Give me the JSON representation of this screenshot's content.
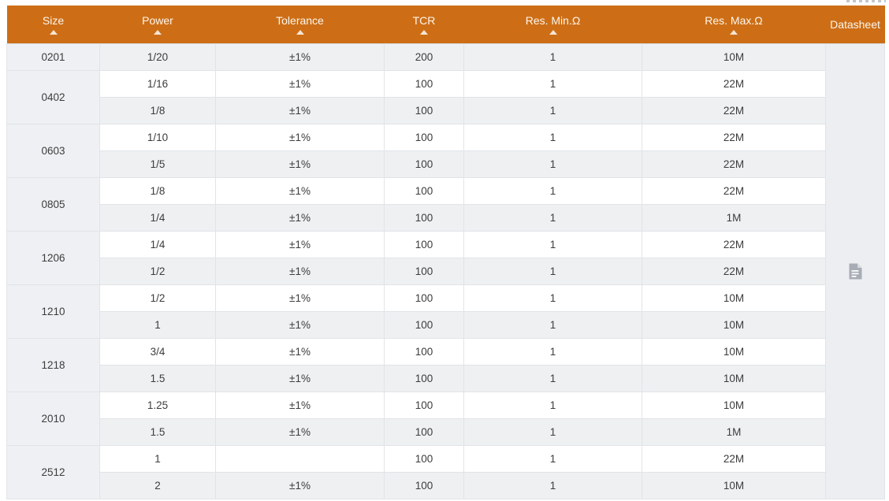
{
  "table": {
    "header": {
      "columns": [
        {
          "key": "size",
          "label": "Size",
          "sortable": true,
          "sort_icon": "sort-asc-icon"
        },
        {
          "key": "power",
          "label": "Power",
          "sortable": true,
          "sort_icon": "sort-asc-icon"
        },
        {
          "key": "tolerance",
          "label": "Tolerance",
          "sortable": true,
          "sort_icon": "sort-asc-icon"
        },
        {
          "key": "tcr",
          "label": "TCR",
          "sortable": true,
          "sort_icon": "sort-asc-icon"
        },
        {
          "key": "res-min",
          "label": "Res. Min.Ω",
          "sortable": true,
          "sort_icon": "sort-asc-icon"
        },
        {
          "key": "res-max",
          "label": "Res. Max.Ω",
          "sortable": true,
          "sort_icon": "sort-asc-icon"
        },
        {
          "key": "datasheet",
          "label": "Datasheet",
          "sortable": false,
          "sort_icon": null
        }
      ]
    },
    "groups": [
      {
        "size": "0201",
        "rows": [
          [
            "1/20",
            "±1%",
            "200",
            "1",
            "10M"
          ]
        ]
      },
      {
        "size": "0402",
        "rows": [
          [
            "1/16",
            "±1%",
            "100",
            "1",
            "22M"
          ],
          [
            "1/8",
            "±1%",
            "100",
            "1",
            "22M"
          ]
        ]
      },
      {
        "size": "0603",
        "rows": [
          [
            "1/10",
            "±1%",
            "100",
            "1",
            "22M"
          ],
          [
            "1/5",
            "±1%",
            "100",
            "1",
            "22M"
          ]
        ]
      },
      {
        "size": "0805",
        "rows": [
          [
            "1/8",
            "±1%",
            "100",
            "1",
            "22M"
          ],
          [
            "1/4",
            "±1%",
            "100",
            "1",
            "1M"
          ]
        ]
      },
      {
        "size": "1206",
        "rows": [
          [
            "1/4",
            "±1%",
            "100",
            "1",
            "22M"
          ],
          [
            "1/2",
            "±1%",
            "100",
            "1",
            "22M"
          ]
        ]
      },
      {
        "size": "1210",
        "rows": [
          [
            "1/2",
            "±1%",
            "100",
            "1",
            "10M"
          ],
          [
            "1",
            "±1%",
            "100",
            "1",
            "10M"
          ]
        ]
      },
      {
        "size": "1218",
        "rows": [
          [
            "3/4",
            "±1%",
            "100",
            "1",
            "10M"
          ],
          [
            "1.5",
            "±1%",
            "100",
            "1",
            "10M"
          ]
        ]
      },
      {
        "size": "2010",
        "rows": [
          [
            "1.25",
            "±1%",
            "100",
            "1",
            "10M"
          ],
          [
            "1.5",
            "±1%",
            "100",
            "1",
            "1M"
          ]
        ]
      },
      {
        "size": "2512",
        "rows": [
          [
            "1",
            "",
            "100",
            "1",
            "22M"
          ],
          [
            "2",
            "±1%",
            "100",
            "1",
            "10M"
          ]
        ]
      }
    ],
    "datasheet_column": {
      "icon": "datasheet-file-icon"
    }
  },
  "icons": {
    "sort-asc-icon": "▲",
    "datasheet-file-icon": "document with folded corner"
  },
  "colors": {
    "header_bg": "#cd6e16",
    "header_text": "#fdf6ec",
    "row_alt_bg": "#eef0f2",
    "size_col_bg": "#eef0f3",
    "datasheet_col_bg": "#eceef1",
    "body_text": "#3c3c3c",
    "border": "#e1e4e8",
    "icon_gray": "#a8adb5"
  }
}
